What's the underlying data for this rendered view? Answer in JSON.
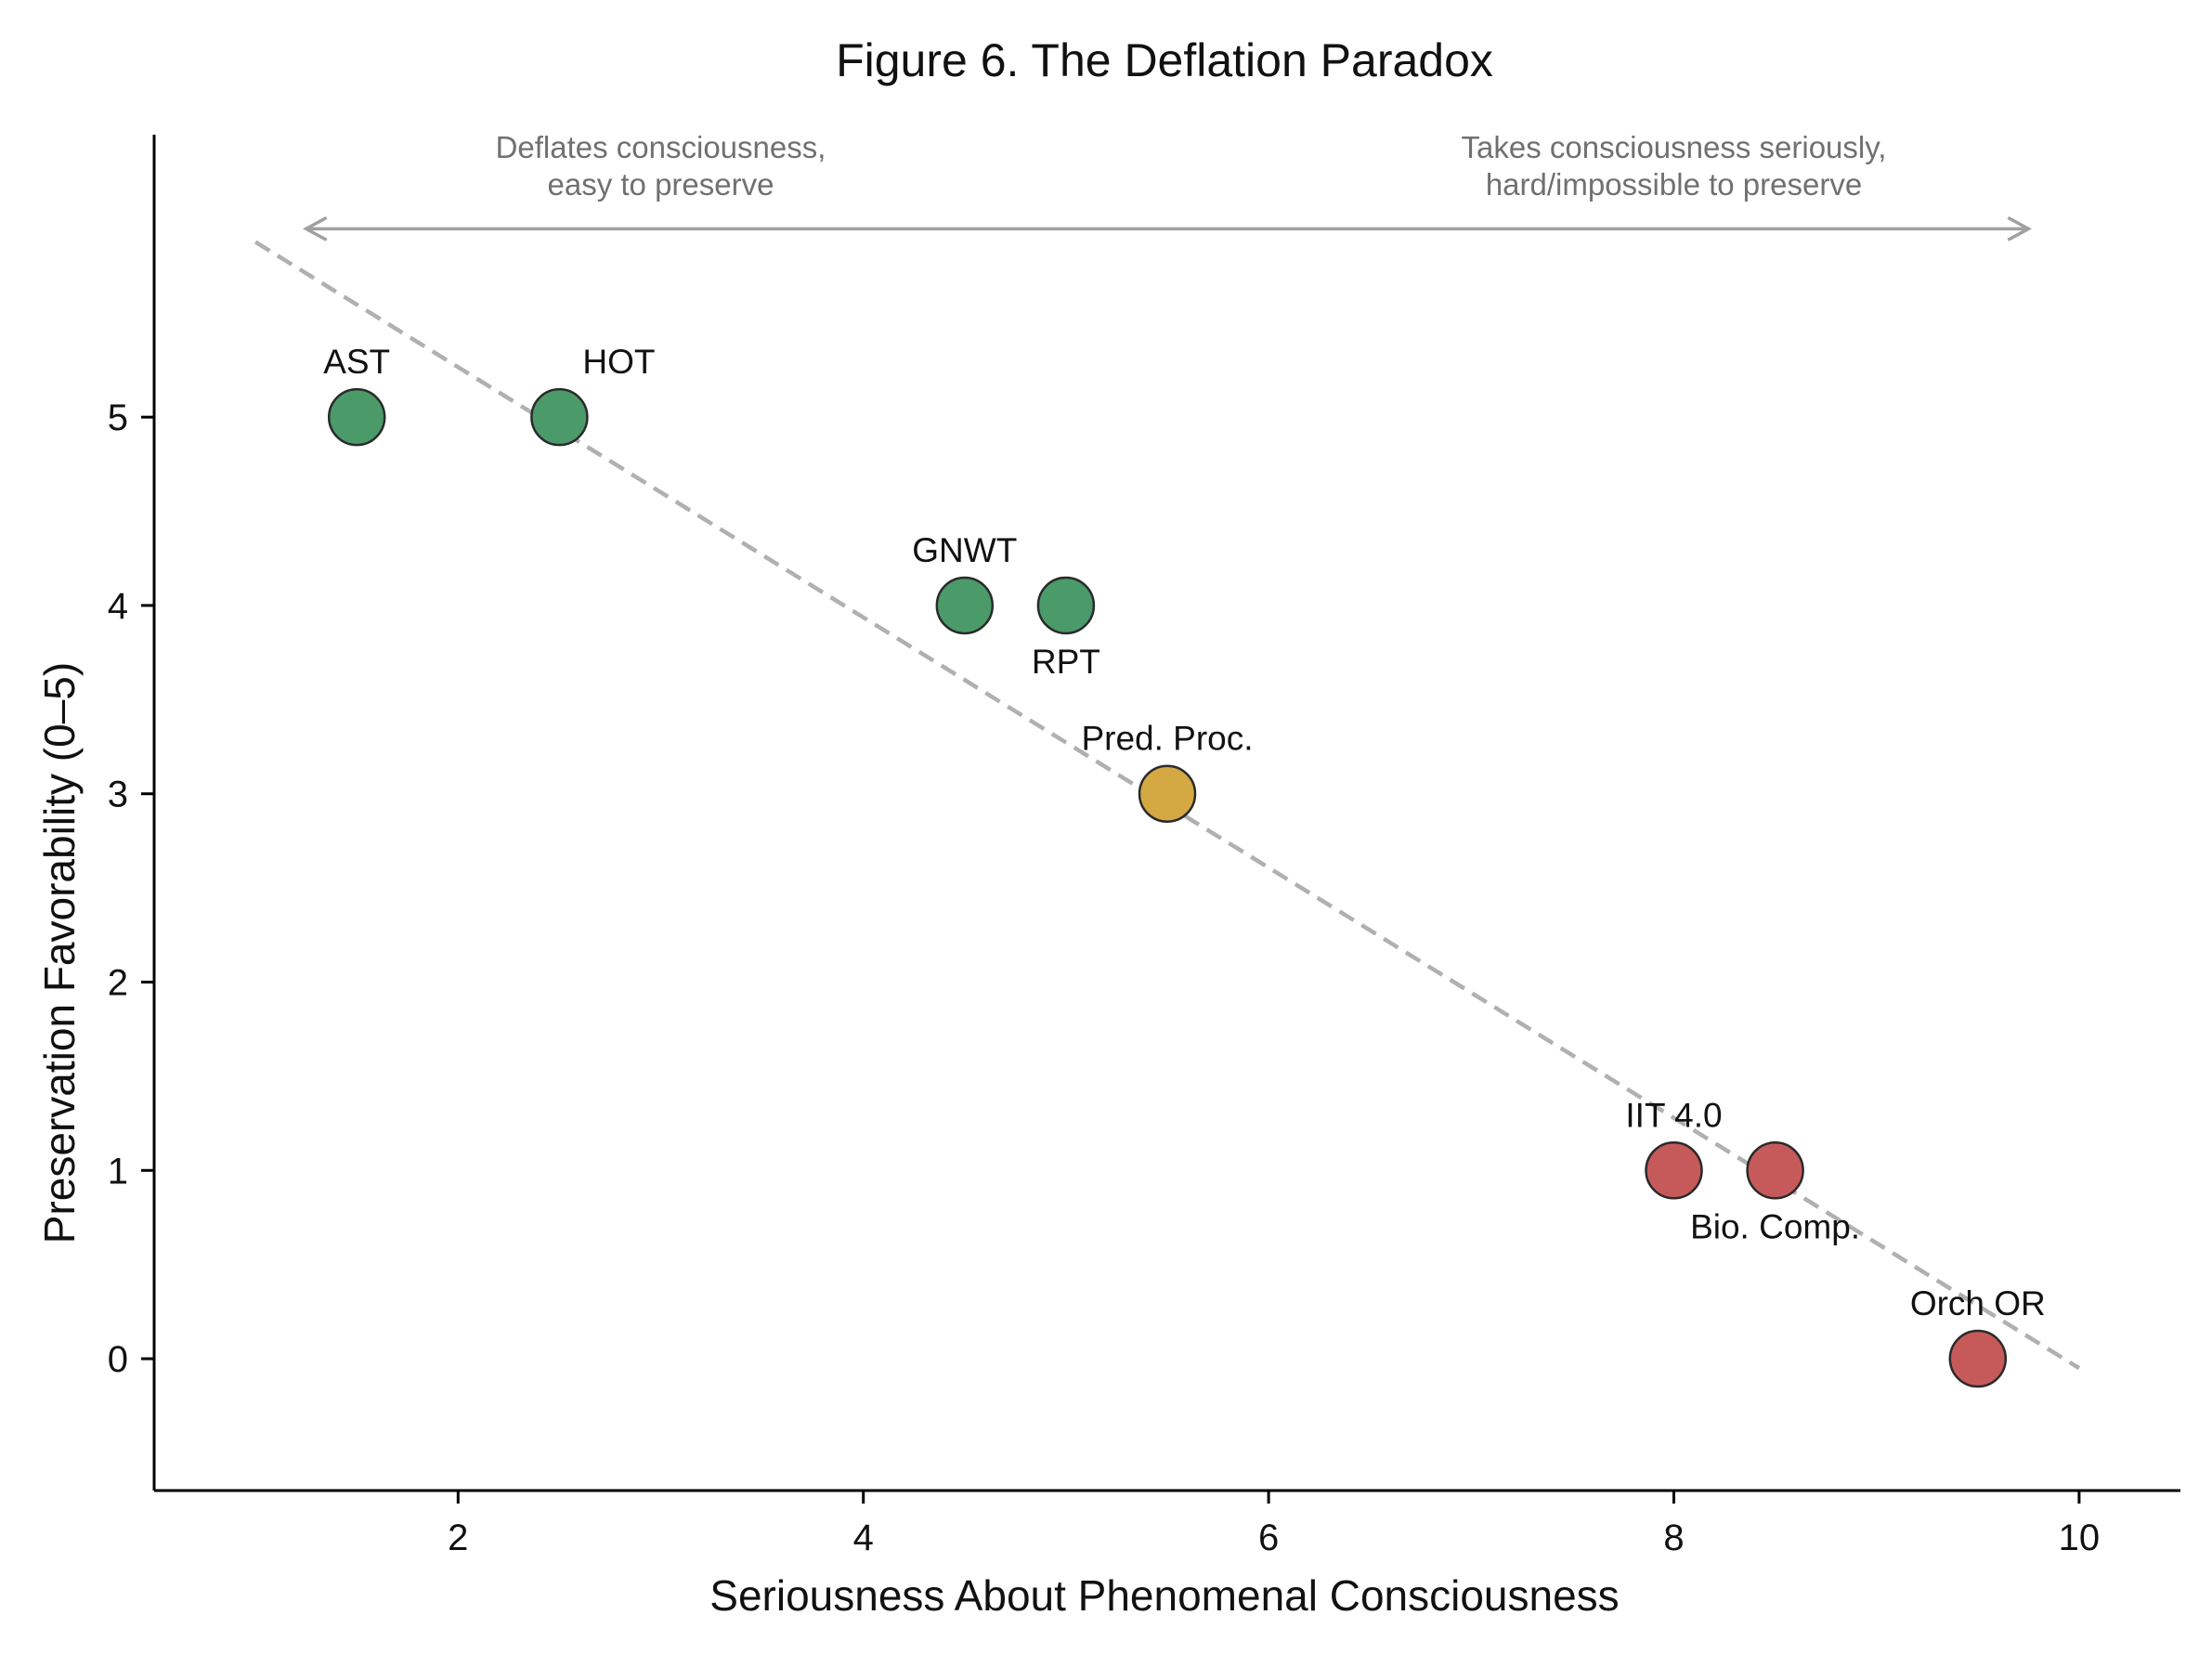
{
  "chart_data": {
    "type": "scatter",
    "title": "Figure 6. The Deflation Paradox",
    "xlabel": "Seriousness About Phenomenal Consciousness",
    "ylabel": "Preservation Favorability (0–5)",
    "xlim": [
      0.5,
      10.5
    ],
    "ylim": [
      -0.7,
      6.5
    ],
    "xticks": [
      2,
      4,
      6,
      8,
      10
    ],
    "yticks": [
      0,
      1,
      2,
      3,
      4,
      5
    ],
    "grid": false,
    "points": [
      {
        "label": "AST",
        "x": 1.5,
        "y": 5,
        "color": "#4a9a6a"
      },
      {
        "label": "HOT",
        "x": 2.5,
        "y": 5,
        "color": "#4a9a6a"
      },
      {
        "label": "GNWT",
        "x": 4.5,
        "y": 4,
        "color": "#4a9a6a"
      },
      {
        "label": "RPT",
        "x": 5.0,
        "y": 4,
        "color": "#4a9a6a"
      },
      {
        "label": "Pred. Proc.",
        "x": 5.5,
        "y": 3,
        "color": "#d4a843"
      },
      {
        "label": "IIT 4.0",
        "x": 8.0,
        "y": 1,
        "color": "#c65a5a"
      },
      {
        "label": "Bio. Comp.",
        "x": 8.5,
        "y": 1,
        "color": "#c65a5a"
      },
      {
        "label": "Orch OR",
        "x": 9.5,
        "y": 0,
        "color": "#c65a5a"
      }
    ],
    "trend_line": {
      "x": [
        1.0,
        10.0
      ],
      "y": [
        5.93,
        -0.05
      ],
      "style": "dashed",
      "color": "#b0b0b0"
    },
    "arrow": {
      "x": [
        1.25,
        9.75
      ],
      "y": 6.0,
      "style": "double-headed",
      "color": "#a0a0a0"
    },
    "annotations": [
      {
        "lines": [
          "Deflates consciousness,",
          "easy to preserve"
        ],
        "x": 3.0
      },
      {
        "lines": [
          "Takes consciousness seriously,",
          "hard/impossible to preserve"
        ],
        "x": 8.0
      }
    ]
  }
}
